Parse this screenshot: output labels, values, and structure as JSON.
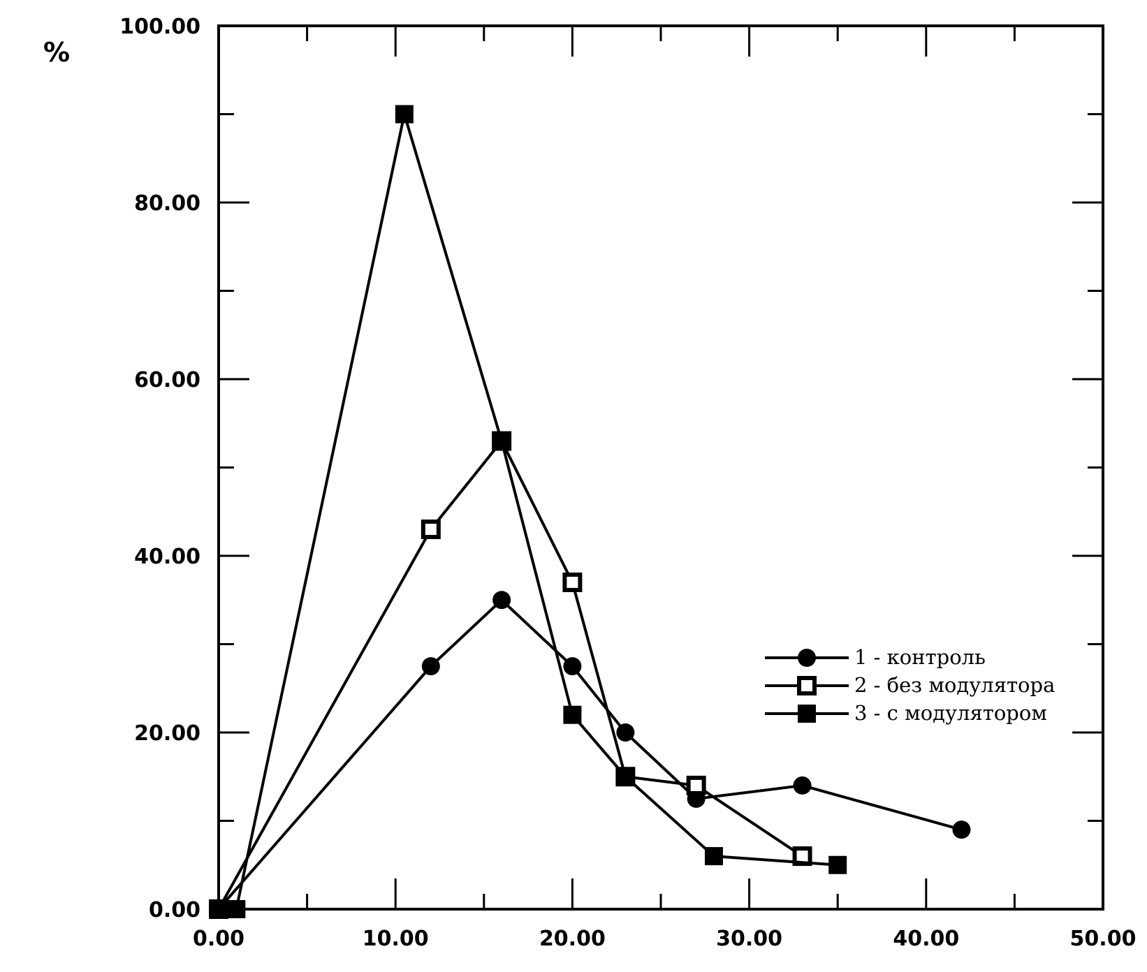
{
  "chart_data": {
    "type": "line",
    "y_unit": "%",
    "xlim": [
      0,
      50
    ],
    "ylim": [
      0,
      100
    ],
    "x_ticks": [
      "0.00",
      "10.00",
      "20.00",
      "30.00",
      "40.00",
      "50.00"
    ],
    "y_ticks": [
      "0.00",
      "20.00",
      "40.00",
      "60.00",
      "80.00",
      "100.00"
    ],
    "legend_position": "right",
    "series": [
      {
        "name": "1 - контроль",
        "marker": "filled-circle",
        "x": [
          0,
          12,
          16,
          20,
          23,
          27,
          33,
          42
        ],
        "y": [
          0,
          27.5,
          35,
          27.5,
          20,
          12.5,
          14,
          9
        ]
      },
      {
        "name": "2 - без модулятора",
        "marker": "open-square",
        "x": [
          0,
          12,
          16,
          20,
          23,
          27,
          33
        ],
        "y": [
          0,
          43,
          53,
          37,
          15,
          14,
          6
        ]
      },
      {
        "name": "3 - с модулятором",
        "marker": "filled-square",
        "x": [
          0,
          1,
          10.5,
          16,
          20,
          23,
          28,
          35
        ],
        "y": [
          0,
          0,
          90,
          53,
          22,
          15,
          6,
          5
        ]
      }
    ]
  }
}
